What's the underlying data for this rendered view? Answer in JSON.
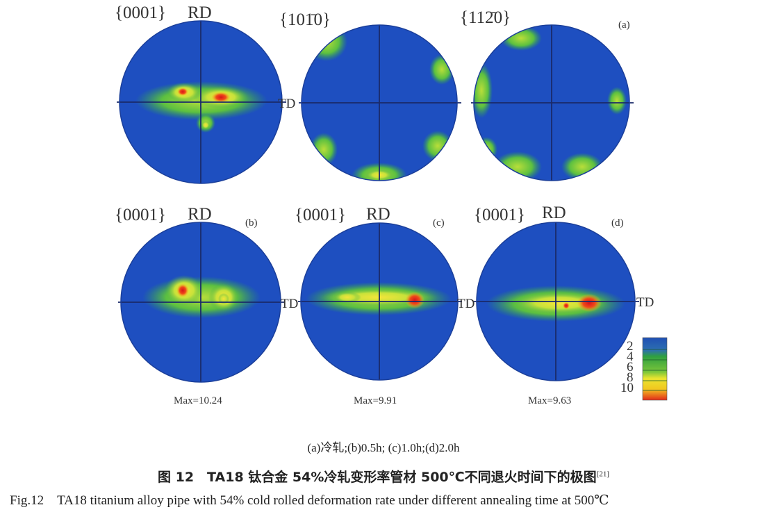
{
  "figure": {
    "panels": [
      {
        "id": "a",
        "panel_label": "(a)",
        "poles": [
          {
            "plane": "{0001}",
            "rd": "RD",
            "td": "TD"
          },
          {
            "plane": "{101̄0}"
          },
          {
            "plane": "{112̄0}"
          }
        ]
      },
      {
        "id": "b",
        "panel_label": "(b)",
        "plane": "{0001}",
        "rd": "RD",
        "td": "TD",
        "max": "Max=10.24"
      },
      {
        "id": "c",
        "panel_label": "(c)",
        "plane": "{0001}",
        "rd": "RD",
        "td": "TD",
        "max": "Max=9.91"
      },
      {
        "id": "d",
        "panel_label": "(d)",
        "plane": "{0001}",
        "rd": "RD",
        "td": "TD",
        "max": "Max=9.63"
      }
    ],
    "legend": {
      "ticks": [
        "2",
        "4",
        "6",
        "8",
        "10"
      ],
      "colors": [
        "#1f4fb4",
        "#2a9a3a",
        "#5cbf3c",
        "#d8e034",
        "#f2d020",
        "#e43a1e"
      ]
    },
    "colors": {
      "background": "#1e4fc0",
      "low": "#33b84a",
      "mid": "#cfe53a",
      "high": "#f0d020",
      "peak": "#e02a18"
    }
  },
  "caption": {
    "subtitle": "(a)冷轧;(b)0.5h; (c)1.0h;(d)2.0h",
    "title_cn": "图 12　TA18 钛合金 54%冷轧变形率管材 500℃不同退火时间下的极图",
    "ref": "[21]",
    "title_en": "Fig.12　TA18 titanium alloy pipe with 54% cold rolled deformation rate under different annealing time at 500℃"
  }
}
